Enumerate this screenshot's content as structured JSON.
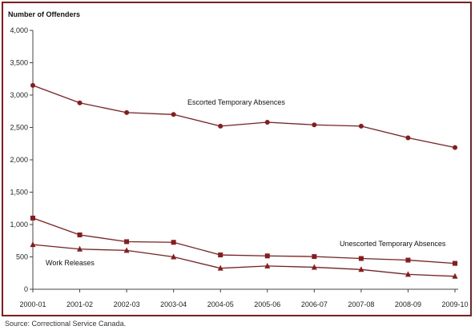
{
  "chart_data": {
    "type": "line",
    "title": "",
    "xlabel": "",
    "ylabel": "Number of Offenders",
    "ylim": [
      0,
      4000
    ],
    "yticks": [
      0,
      500,
      1000,
      1500,
      2000,
      2500,
      3000,
      3500,
      4000
    ],
    "ytick_labels": [
      "0",
      "500",
      "1,000",
      "1,500",
      "2,000",
      "2,500",
      "3,000",
      "3,500",
      "4,000"
    ],
    "grid": false,
    "legend": "none",
    "categories": [
      "2000-01",
      "2001-02",
      "2002-03",
      "2003-04",
      "2004-05",
      "2005-06",
      "2006-07",
      "2007-08",
      "2008-09",
      "2009-10"
    ],
    "series": [
      {
        "name": "Escorted Temporary Absences",
        "marker": "circle",
        "color": "#8b1a1a",
        "values": [
          3150,
          2880,
          2730,
          2700,
          2520,
          2580,
          2540,
          2520,
          2340,
          2190
        ]
      },
      {
        "name": "Unescorted Temporary Absences",
        "marker": "square",
        "color": "#8b1a1a",
        "values": [
          1100,
          840,
          735,
          725,
          530,
          515,
          505,
          475,
          450,
          400
        ]
      },
      {
        "name": "Work Releases",
        "marker": "triangle",
        "color": "#8b1a1a",
        "values": [
          690,
          620,
          600,
          500,
          325,
          360,
          340,
          305,
          230,
          200
        ]
      }
    ]
  },
  "source": "Source:  Correctional Service Canada."
}
